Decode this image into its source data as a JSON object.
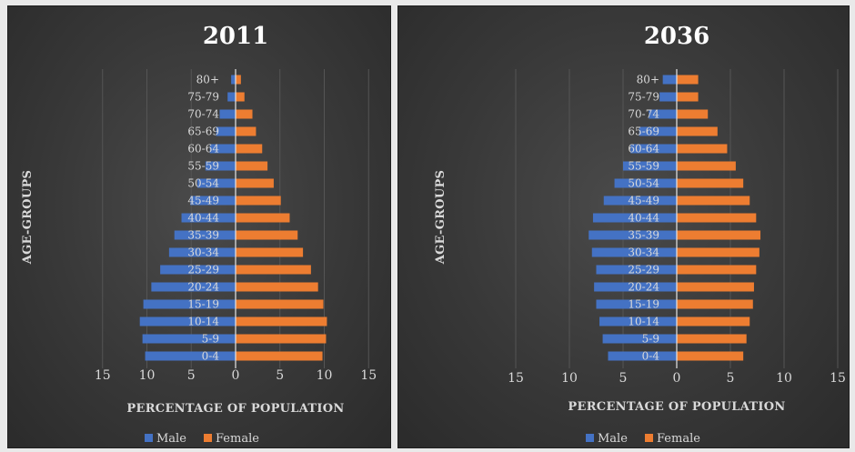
{
  "colors": {
    "male": "#4472c4",
    "female": "#ed7d31",
    "grid": "#555555",
    "zero_line": "#e6e6e6"
  },
  "chart_data": [
    {
      "type": "bar",
      "orientation": "horizontal",
      "title": "2011",
      "xlabel": "PERCENTAGE OF POPULATION",
      "ylabel": "AGE-GROUPS",
      "categories": [
        "0-4",
        "5-9",
        "10-14",
        "15-19",
        "20-24",
        "25-29",
        "30-34",
        "35-39",
        "40-44",
        "45-49",
        "50-54",
        "55-59",
        "60-64",
        "65-69",
        "70-74",
        "75-79",
        "80+"
      ],
      "series": [
        {
          "name": "Male",
          "values": [
            10.2,
            10.5,
            10.8,
            10.4,
            9.5,
            8.5,
            7.5,
            6.9,
            6.1,
            5.1,
            4.3,
            3.4,
            2.9,
            2.2,
            1.8,
            0.9,
            0.5
          ]
        },
        {
          "name": "Female",
          "values": [
            9.8,
            10.2,
            10.3,
            9.9,
            9.3,
            8.5,
            7.6,
            7.0,
            6.1,
            5.1,
            4.3,
            3.6,
            3.0,
            2.3,
            1.9,
            1.0,
            0.6
          ]
        }
      ],
      "xlim": [
        -15,
        15
      ],
      "xticks": [
        -15,
        -10,
        -5,
        0,
        5,
        10,
        15
      ],
      "xtick_labels": [
        "15",
        "10",
        "5",
        "0",
        "5",
        "10",
        "15"
      ],
      "legend": "bottom",
      "grid": true
    },
    {
      "type": "bar",
      "orientation": "horizontal",
      "title": "2036",
      "xlabel": "PERCENTAGE OF POPULATION",
      "ylabel": "AGE-GROUPS",
      "categories": [
        "0-4",
        "5-9",
        "10-14",
        "15-19",
        "20-24",
        "25-29",
        "30-34",
        "35-39",
        "40-44",
        "45-49",
        "50-54",
        "55-59",
        "60-64",
        "65-69",
        "70-74",
        "75-79",
        "80+"
      ],
      "series": [
        {
          "name": "Male",
          "values": [
            6.4,
            6.9,
            7.2,
            7.5,
            7.7,
            7.5,
            7.9,
            8.2,
            7.8,
            6.8,
            5.8,
            5.0,
            4.3,
            3.5,
            2.6,
            1.6,
            1.3
          ]
        },
        {
          "name": "Female",
          "values": [
            6.2,
            6.5,
            6.8,
            7.1,
            7.2,
            7.4,
            7.7,
            7.8,
            7.4,
            6.8,
            6.2,
            5.5,
            4.7,
            3.8,
            2.9,
            2.0,
            2.0
          ]
        }
      ],
      "xlim": [
        -15,
        15
      ],
      "xticks": [
        -15,
        -10,
        -5,
        0,
        5,
        10,
        15
      ],
      "xtick_labels": [
        "15",
        "10",
        "5",
        "0",
        "5",
        "10",
        "15"
      ],
      "legend": "bottom",
      "grid": true
    }
  ]
}
